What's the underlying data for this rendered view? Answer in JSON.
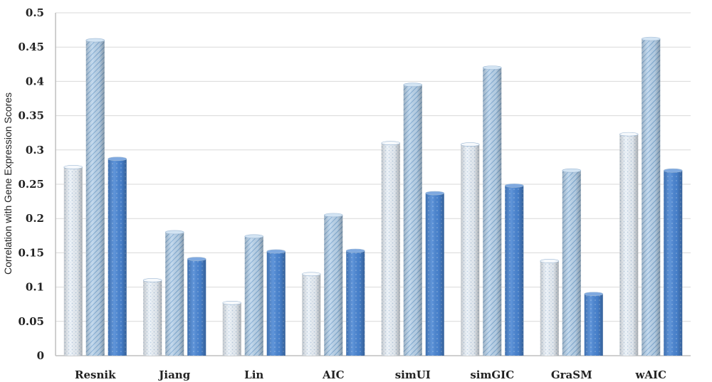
{
  "chart_data": {
    "type": "bar",
    "title": "",
    "xlabel": "",
    "ylabel": "Correlation with Gene Expression Scores",
    "ylim": [
      0,
      0.5
    ],
    "yticks": [
      0,
      0.05,
      0.1,
      0.15,
      0.2,
      0.25,
      0.3,
      0.35,
      0.4,
      0.45,
      0.5
    ],
    "ytick_labels": [
      "0",
      "0.05",
      "0.1",
      "0.15",
      "0.2",
      "0.25",
      "0.3",
      "0.35",
      "0.4",
      "0.45",
      "0.5"
    ],
    "grid": true,
    "legend": "none",
    "categories": [
      "Resnik",
      "Jiang",
      "Lin",
      "AIC",
      "simUI",
      "simGIC",
      "GraSM",
      "wAIC"
    ],
    "series": [
      {
        "values": [
          0.275,
          0.11,
          0.077,
          0.119,
          0.31,
          0.308,
          0.138,
          0.323
        ],
        "color": "#e4edf6",
        "pattern": "dots"
      },
      {
        "values": [
          0.46,
          0.18,
          0.174,
          0.205,
          0.395,
          0.42,
          0.27,
          0.462
        ],
        "color": "#a8c8e6",
        "pattern": "diagonal"
      },
      {
        "values": [
          0.287,
          0.141,
          0.152,
          0.153,
          0.237,
          0.248,
          0.09,
          0.27
        ],
        "color": "#4a86d4",
        "pattern": "dots-dark"
      }
    ]
  }
}
